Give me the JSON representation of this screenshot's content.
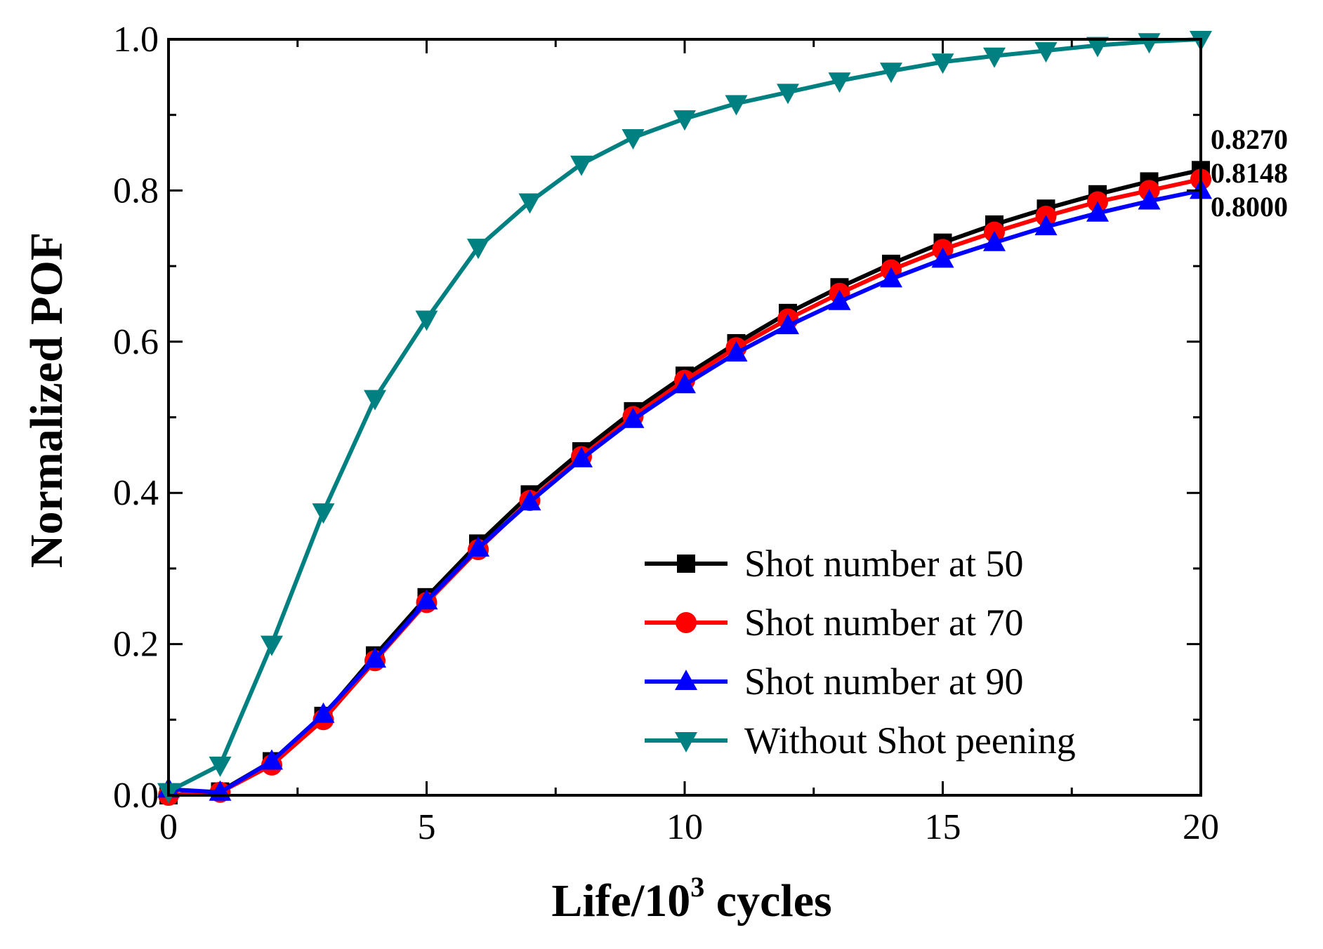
{
  "chart_data": {
    "type": "line",
    "xlabel": "Life/10",
    "xlabel_sup": "3",
    "xlabel_suffix": " cycles",
    "ylabel": "Normalized POF",
    "xlim": [
      0,
      20
    ],
    "ylim": [
      0,
      1.0
    ],
    "xticks": [
      0,
      5,
      10,
      15,
      20
    ],
    "xtick_labels": [
      "0",
      "5",
      "10",
      "15",
      "20"
    ],
    "yticks": [
      0.0,
      0.2,
      0.4,
      0.6,
      0.8,
      1.0
    ],
    "ytick_labels": [
      "0.0",
      "0.2",
      "0.4",
      "0.6",
      "0.8",
      "1.0"
    ],
    "grid": false,
    "legend_position": "bottom-right",
    "series": [
      {
        "name": "Shot number at 50",
        "color": "#000000",
        "marker": "square",
        "x": [
          0,
          1,
          2,
          3,
          4,
          5,
          6,
          7,
          8,
          9,
          10,
          11,
          12,
          13,
          14,
          15,
          16,
          17,
          18,
          19,
          20
        ],
        "values": [
          0.0,
          0.005,
          0.045,
          0.105,
          0.185,
          0.262,
          0.333,
          0.398,
          0.455,
          0.508,
          0.555,
          0.598,
          0.638,
          0.672,
          0.703,
          0.731,
          0.755,
          0.776,
          0.795,
          0.812,
          0.827
        ]
      },
      {
        "name": "Shot number at 70",
        "color": "#ff0000",
        "marker": "circle",
        "x": [
          0,
          1,
          2,
          3,
          4,
          5,
          6,
          7,
          8,
          9,
          10,
          11,
          12,
          13,
          14,
          15,
          16,
          17,
          18,
          19,
          20
        ],
        "values": [
          0.0,
          0.004,
          0.04,
          0.1,
          0.178,
          0.255,
          0.325,
          0.39,
          0.448,
          0.501,
          0.549,
          0.592,
          0.63,
          0.664,
          0.695,
          0.722,
          0.745,
          0.766,
          0.785,
          0.8,
          0.8148
        ]
      },
      {
        "name": "Shot number at 90",
        "color": "#0000ff",
        "marker": "triangle-up",
        "x": [
          0,
          1,
          2,
          3,
          4,
          5,
          6,
          7,
          8,
          9,
          10,
          11,
          12,
          13,
          14,
          15,
          16,
          17,
          18,
          19,
          20
        ],
        "values": [
          0.008,
          0.004,
          0.045,
          0.107,
          0.18,
          0.257,
          0.327,
          0.388,
          0.445,
          0.497,
          0.543,
          0.585,
          0.621,
          0.653,
          0.683,
          0.709,
          0.731,
          0.752,
          0.77,
          0.786,
          0.8
        ]
      },
      {
        "name": "Without Shot peening",
        "color": "#008080",
        "marker": "triangle-down",
        "x": [
          0,
          1,
          2,
          3,
          4,
          5,
          6,
          7,
          8,
          9,
          10,
          11,
          12,
          13,
          14,
          15,
          16,
          17,
          18,
          19,
          20
        ],
        "values": [
          0.005,
          0.04,
          0.2,
          0.375,
          0.525,
          0.63,
          0.725,
          0.785,
          0.835,
          0.87,
          0.895,
          0.915,
          0.93,
          0.945,
          0.958,
          0.97,
          0.978,
          0.985,
          0.992,
          0.997,
          1.0
        ]
      }
    ],
    "annotations": [
      {
        "text": "0.8270",
        "series": 0
      },
      {
        "text": "0.8148",
        "series": 1
      },
      {
        "text": "0.8000",
        "series": 2
      }
    ]
  }
}
